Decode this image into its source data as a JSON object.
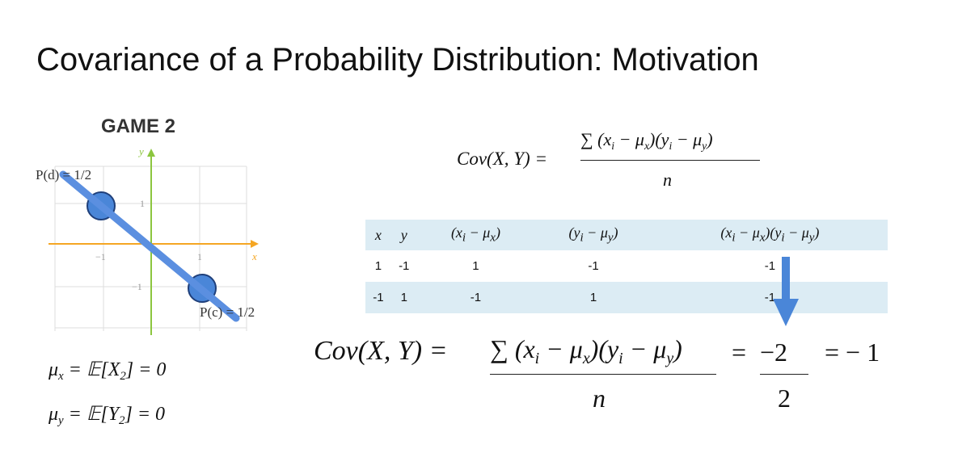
{
  "title": "Covariance of a Probability Distribution: Motivation",
  "game": {
    "label": "GAME 2",
    "axis_x": "x",
    "axis_y": "y",
    "tick_x": [
      "−1",
      "1"
    ],
    "tick_y": [
      "1",
      "−1"
    ],
    "point_labels": [
      "P(d) = 1/2",
      "P(c) = 1/2"
    ]
  },
  "means": [
    [
      "μ",
      "x",
      " = 𝔼[X",
      "2",
      "] = 0"
    ],
    [
      "μ",
      "y",
      " = 𝔼[Y",
      "2",
      "] = 0"
    ]
  ],
  "top_formula": {
    "lhs": "Cov(X, Y) =",
    "numerator": [
      "∑ (x",
      "i",
      " − μ",
      "x",
      ")(y",
      "i",
      " − μ",
      "y",
      ")"
    ],
    "denominator": "n"
  },
  "table": {
    "header": [
      [
        "x"
      ],
      [
        "y"
      ],
      [
        "(x",
        "i",
        " − μ",
        "x",
        ")"
      ],
      [
        "(y",
        "i",
        " − μ",
        "y",
        ")"
      ],
      [
        "(x",
        "i",
        " − μ",
        "x",
        ")(y",
        "i",
        " − μ",
        "y",
        ")"
      ]
    ],
    "rows": [
      [
        "1",
        "-1",
        "1",
        "-1",
        "-1"
      ],
      [
        "-1",
        "1",
        "-1",
        "1",
        "-1"
      ]
    ]
  },
  "bottom_formula": {
    "lhs": "Cov(X, Y) =",
    "numerator": [
      "∑ (x",
      "i",
      " − μ",
      "x",
      ")(y",
      "i",
      " − μ",
      "y",
      ")"
    ],
    "denominator": "n",
    "eq": "=",
    "result_numerator": "−2",
    "result_denominator": "2",
    "result": "= − 1"
  }
}
